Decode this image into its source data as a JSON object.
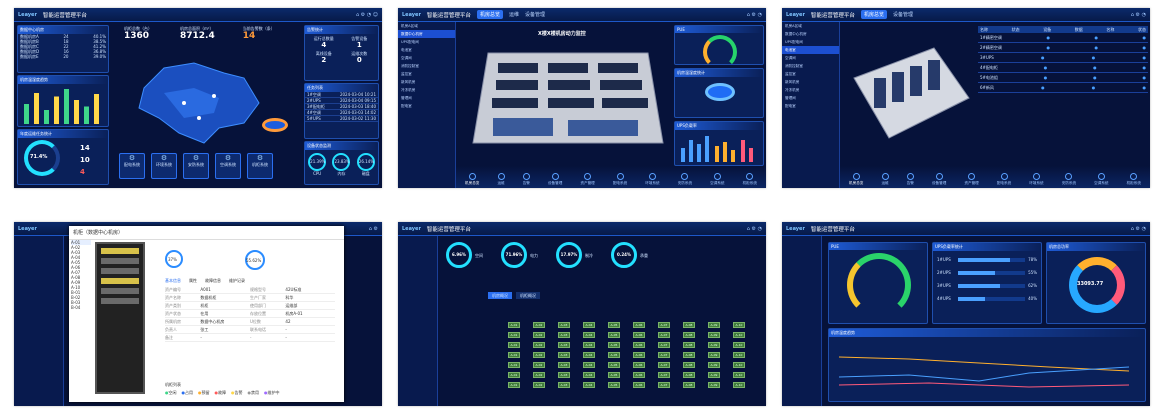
{
  "app": {
    "logo": "Leayer",
    "title": "智能运营管理平台"
  },
  "nav": [
    "机房总览",
    "运维",
    "告警",
    "设备管理",
    "资产管理"
  ],
  "s1": {
    "kpi1_label": "机柜总数（台）",
    "kpi1_value": "1360",
    "kpi2_label": "机房总面积（m²）",
    "kpi2_value": "8712.4",
    "kpi3_label": "当前告警数（条）",
    "kpi3_value": "14",
    "left_titles": [
      "数据中心机房",
      "机房温湿度趋势",
      "年度运维任务统计"
    ],
    "left_rows": [
      [
        "数据机房A",
        "24",
        "40.1%"
      ],
      [
        "数据机房B",
        "18",
        "38.5%"
      ],
      [
        "数据机房C",
        "22",
        "41.2%"
      ],
      [
        "数据机房D",
        "16",
        "36.8%"
      ],
      [
        "数据机房E",
        "20",
        "39.0%"
      ]
    ],
    "bars": [
      40,
      62,
      28,
      55,
      70,
      48,
      35,
      60
    ],
    "gauge_pct": "71.4%",
    "stat_total": "14",
    "stat_b": "10",
    "stat_c": "4",
    "right_titles": [
      "告警统计",
      "任务列表",
      "设备状态监测"
    ],
    "right_stats": [
      [
        "运行总数量",
        "4"
      ],
      [
        "告警设备",
        "1"
      ],
      [
        "离线设备",
        "2"
      ],
      [
        "运维次数",
        "0"
      ]
    ],
    "tasks": [
      [
        "1#空调",
        "2024-03-04 10:21"
      ],
      [
        "2#UPS",
        "2024-03-04 09:15"
      ],
      [
        "3#配电柜",
        "2024-03-03 18:40"
      ],
      [
        "4#空调",
        "2024-03-03 14:02"
      ],
      [
        "5#UPS",
        "2024-03-02 11:30"
      ]
    ],
    "rings": [
      [
        "21.39%",
        "CPU"
      ],
      [
        "23.83%",
        "内存"
      ],
      [
        "26.14%",
        "磁盘"
      ]
    ],
    "tiles": [
      "配电系统",
      "环境系统",
      "安防系统",
      "空调系统",
      "机柜系统"
    ]
  },
  "s2": {
    "title": "X楼X楼机房动力监控",
    "side": [
      "机房A区域",
      "数据中心机房",
      "UPS配电间",
      "电池室",
      "空调间",
      "消防控制室",
      "监控室",
      "新风机房",
      "冷冻机房",
      "管理间",
      "配电室"
    ],
    "r1": "PUE",
    "r2": "机房温湿度统计",
    "r3": "UPS负载率"
  },
  "s3": {
    "cols": [
      "名称",
      "状态",
      "设备",
      "数据",
      "名称",
      "状态"
    ],
    "rows": [
      "1#精密空调",
      "2#精密空调",
      "3#UPS",
      "4#配电柜",
      "5#电池组",
      "6#新风"
    ]
  },
  "s4": {
    "title": "机柜（数据中心机房）",
    "tabs": [
      "基本信息",
      "属性",
      "故障信息",
      "维护记录"
    ],
    "ring1": "37%",
    "ring2": "55.62%",
    "fields": [
      [
        "资产编号",
        "A001",
        "规格型号",
        "42U标准"
      ],
      [
        "资产名称",
        "数据机柜",
        "生产厂家",
        "科华"
      ],
      [
        "资产类别",
        "机柜",
        "使用部门",
        "运维部"
      ],
      [
        "资产状态",
        "在用",
        "存放位置",
        "机房A-01"
      ],
      [
        "所属机房",
        "数据中心机房",
        "U位数",
        "42"
      ],
      [
        "负责人",
        "张工",
        "联系电话",
        "-"
      ],
      [
        "备注",
        "-",
        "-",
        "-"
      ]
    ],
    "list_title": "机柜列表",
    "items": [
      "A-01",
      "A-02",
      "A-03",
      "A-04",
      "A-05",
      "A-06",
      "A-07",
      "A-08",
      "A-09",
      "A-10",
      "B-01",
      "B-02",
      "B-03",
      "B-04"
    ],
    "legend": [
      "空闲",
      "占用",
      "预留",
      "故障",
      "告警",
      "禁用",
      "维护中"
    ]
  },
  "s5": {
    "tabs": [
      "机房概况",
      "机柜概况"
    ],
    "pcts": [
      [
        "6.96%",
        "空间"
      ],
      [
        "71.96%",
        "电力"
      ],
      [
        "17.97%",
        "制冷"
      ],
      [
        "0.24%",
        "承重"
      ]
    ],
    "cells": [
      "A-01",
      "A-02",
      "A-03",
      "A-04",
      "A-05",
      "A-06",
      "A-07",
      "A-08",
      "A-09",
      "A-10"
    ]
  },
  "s6": {
    "g1": "PUE",
    "g2": "机房总功率",
    "g3": "UPS负载率统计",
    "donut": "33093.77",
    "bars": [
      [
        "1#UPS",
        "78%"
      ],
      [
        "2#UPS",
        "55%"
      ],
      [
        "3#UPS",
        "62%"
      ],
      [
        "4#UPS",
        "40%"
      ]
    ],
    "line": "机房温度趋势"
  },
  "colors": {
    "bg": "#06123a",
    "accent": "#2b6ff0",
    "green": "#3f7d3a",
    "orange": "#ff9a3a"
  }
}
